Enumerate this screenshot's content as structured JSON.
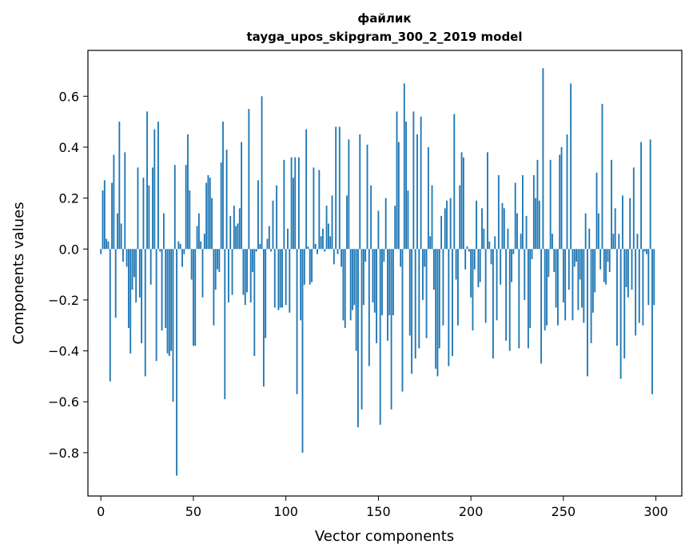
{
  "chart_data": {
    "type": "bar",
    "title": "файлик",
    "subtitle": "tayga_upos_skipgram_300_2_2019 model",
    "xlabel": "Vector components",
    "ylabel": "Components values",
    "xlim": [
      -7,
      314
    ],
    "ylim": [
      -0.97,
      0.78
    ],
    "x_ticks": [
      0,
      50,
      100,
      150,
      200,
      250,
      300
    ],
    "x_tick_labels": [
      "0",
      "50",
      "100",
      "150",
      "200",
      "250",
      "300"
    ],
    "y_ticks": [
      -0.8,
      -0.6,
      -0.4,
      -0.2,
      0.0,
      0.2,
      0.4,
      0.6
    ],
    "y_tick_labels": [
      "−0.8",
      "−0.6",
      "−0.4",
      "−0.2",
      "0.0",
      "0.2",
      "0.4",
      "0.6"
    ],
    "grid": false,
    "bar_color": "#1f77b4",
    "x": "indices 0..299 (one bar per vector component)",
    "values": [
      -0.02,
      0.23,
      0.27,
      0.04,
      0.03,
      -0.52,
      0.26,
      0.37,
      -0.27,
      0.14,
      0.5,
      0.1,
      -0.05,
      0.38,
      -0.07,
      -0.31,
      -0.41,
      -0.16,
      -0.11,
      -0.21,
      0.32,
      -0.19,
      -0.37,
      0.28,
      -0.5,
      0.54,
      0.25,
      -0.14,
      0.32,
      0.47,
      -0.44,
      0.5,
      -0.01,
      -0.32,
      0.14,
      -0.31,
      -0.41,
      -0.42,
      -0.4,
      -0.6,
      0.33,
      -0.89,
      0.03,
      0.02,
      -0.07,
      -0.02,
      0.33,
      0.45,
      0.23,
      -0.12,
      -0.38,
      -0.38,
      0.09,
      0.14,
      0.03,
      -0.19,
      0.06,
      0.26,
      0.29,
      0.28,
      0.2,
      -0.3,
      -0.16,
      -0.08,
      -0.09,
      0.34,
      0.5,
      -0.59,
      0.39,
      -0.21,
      0.13,
      -0.18,
      0.17,
      0.09,
      0.1,
      0.16,
      0.42,
      -0.18,
      -0.22,
      -0.17,
      0.55,
      -0.21,
      -0.09,
      -0.42,
      -0.01,
      0.27,
      0.02,
      0.6,
      -0.54,
      -0.35,
      0.04,
      0.09,
      -0.01,
      0.19,
      -0.23,
      0.25,
      -0.24,
      -0.23,
      -0.23,
      0.35,
      -0.22,
      0.08,
      -0.25,
      0.36,
      0.28,
      0.36,
      -0.57,
      0.36,
      -0.28,
      -0.8,
      -0.14,
      0.47,
      0.01,
      -0.14,
      -0.13,
      0.32,
      0.02,
      -0.02,
      0.31,
      0.05,
      0.08,
      -0.01,
      0.17,
      0.1,
      0.05,
      0.21,
      -0.06,
      0.48,
      -0.02,
      0.48,
      -0.07,
      -0.28,
      -0.31,
      0.21,
      0.43,
      -0.28,
      -0.24,
      -0.22,
      -0.4,
      -0.7,
      0.45,
      -0.63,
      -0.22,
      -0.05,
      0.41,
      -0.46,
      0.25,
      -0.21,
      -0.25,
      -0.37,
      0.15,
      -0.69,
      -0.26,
      -0.05,
      0.2,
      -0.36,
      -0.26,
      -0.63,
      -0.26,
      0.17,
      0.54,
      0.42,
      -0.07,
      -0.56,
      0.65,
      0.5,
      0.23,
      -0.34,
      -0.49,
      0.54,
      -0.43,
      0.45,
      -0.39,
      0.52,
      -0.2,
      -0.07,
      -0.35,
      0.4,
      0.05,
      0.25,
      -0.16,
      -0.47,
      -0.5,
      -0.39,
      0.13,
      -0.3,
      0.16,
      0.19,
      -0.46,
      0.2,
      -0.42,
      0.53,
      -0.12,
      -0.3,
      0.25,
      0.38,
      0.36,
      -0.08,
      0.01,
      -0.01,
      -0.19,
      -0.32,
      -0.08,
      0.19,
      -0.15,
      -0.13,
      0.16,
      0.08,
      -0.29,
      0.38,
      0.03,
      -0.06,
      -0.43,
      0.05,
      -0.28,
      0.29,
      -0.14,
      0.18,
      0.16,
      -0.36,
      0.08,
      -0.4,
      -0.13,
      -0.02,
      0.26,
      0.14,
      -0.39,
      0.06,
      0.29,
      -0.2,
      0.13,
      -0.39,
      -0.31,
      -0.04,
      0.29,
      0.2,
      0.35,
      0.19,
      -0.45,
      0.71,
      -0.32,
      -0.3,
      -0.11,
      0.35,
      0.06,
      -0.09,
      -0.23,
      -0.3,
      0.37,
      0.4,
      -0.21,
      -0.28,
      0.45,
      -0.16,
      0.65,
      -0.28,
      -0.07,
      -0.05,
      -0.24,
      -0.12,
      -0.23,
      -0.29,
      0.14,
      -0.5,
      0.08,
      -0.37,
      -0.25,
      -0.17,
      0.3,
      0.14,
      -0.08,
      0.57,
      -0.13,
      -0.14,
      -0.05,
      -0.09,
      0.35,
      0.06,
      0.16,
      -0.38,
      0.06,
      -0.51,
      0.21,
      -0.43,
      -0.15,
      -0.19,
      0.2,
      -0.16,
      0.32,
      -0.34,
      0.06,
      -0.29,
      0.42,
      -0.3,
      -0.01,
      -0.02,
      -0.22,
      0.43,
      -0.57,
      -0.22
    ]
  }
}
